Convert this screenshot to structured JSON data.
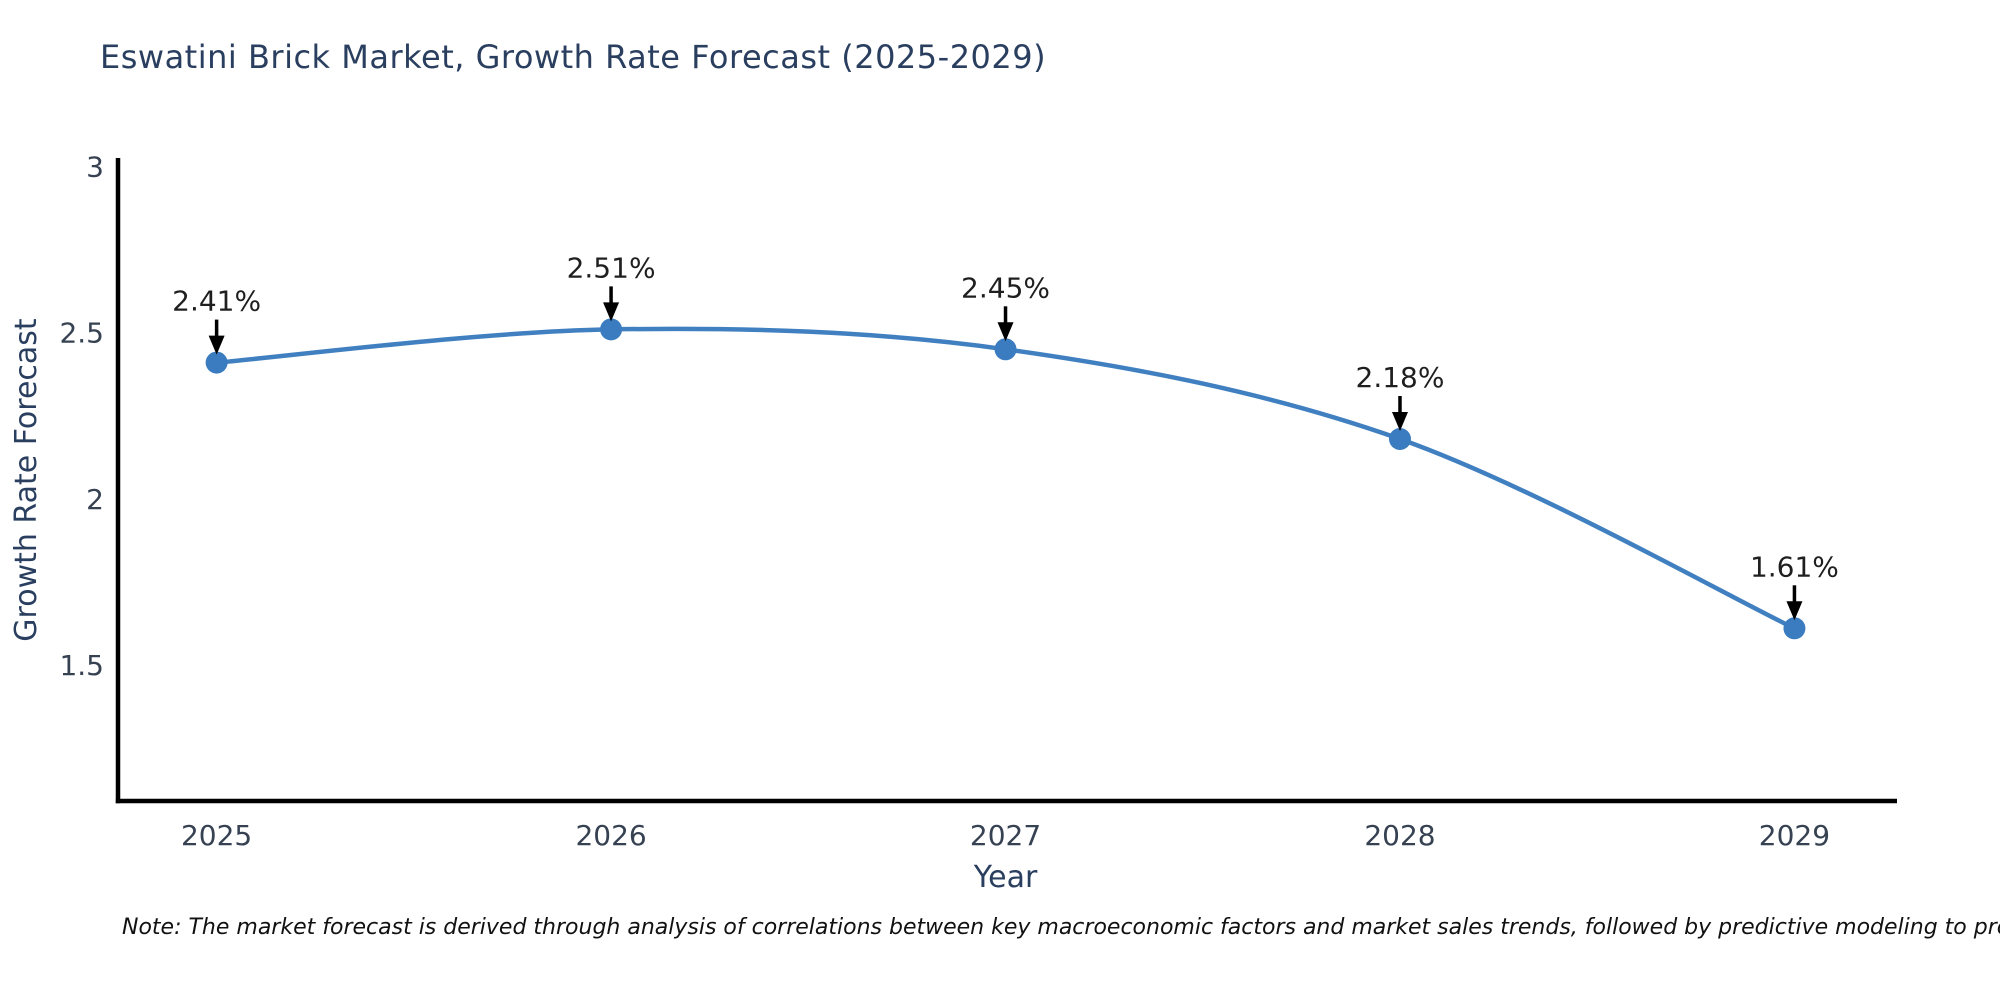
{
  "title": "Eswatini Brick Market, Growth Rate Forecast (2025-2029)",
  "note": "Note: The market forecast is derived through analysis of correlations between key macroeconomic factors and market sales trends, followed by predictive modeling to project future sales",
  "colors": {
    "background": "#ffffff",
    "line": "#4180c0",
    "marker": "#3b7cc0",
    "axis": "#000000",
    "title_text": "#2a3f5f",
    "axis_title_text": "#2a3f5f",
    "tick_text": "#364152",
    "point_label_text": "#1f1f1f",
    "arrow": "#000000",
    "note_text": "#111111"
  },
  "chart_data": {
    "type": "line",
    "x": [
      2025,
      2026,
      2027,
      2028,
      2029
    ],
    "values": [
      2.41,
      2.51,
      2.45,
      2.18,
      1.61
    ],
    "point_labels": [
      "2.41%",
      "2.51%",
      "2.45%",
      "2.18%",
      "1.61%"
    ],
    "x_tick_labels": [
      "2025",
      "2026",
      "2027",
      "2028",
      "2029"
    ],
    "y_ticks": [
      1.5,
      2,
      2.5,
      3
    ],
    "y_tick_labels": [
      "1.5",
      "2",
      "2.5",
      "3"
    ],
    "title": "Eswatini Brick Market, Growth Rate Forecast (2025-2029)",
    "xlabel": "Year",
    "ylabel": "Growth Rate Forecast",
    "xlim": [
      2024.75,
      2029.26
    ],
    "ylim": [
      1.09,
      3.02
    ],
    "grid": false,
    "legend": null,
    "annotation_style": "value label above each point with downward arrow"
  }
}
